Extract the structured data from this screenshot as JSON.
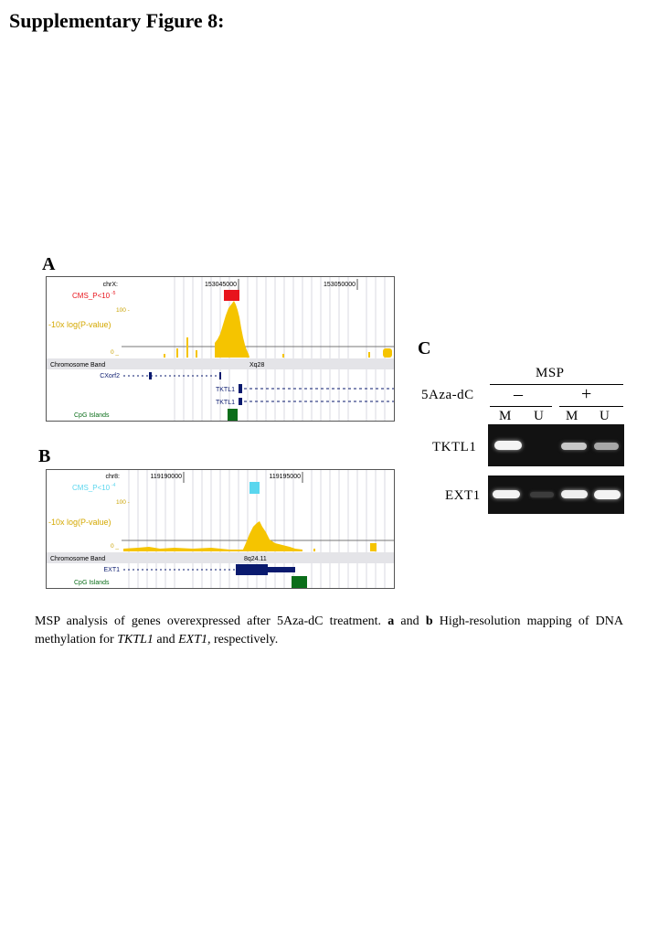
{
  "title": "Supplementary Figure 8:",
  "panelA": {
    "letter": "A",
    "chrom_label": "chrX:",
    "tick1": "153045000",
    "tick2": "153050000",
    "cms_label": "CMS_P<10",
    "cms_exp": "-5",
    "y100": "100 -",
    "y0": "0 _",
    "logp_label": "-10x log(P-value)",
    "band_label": "Chromosome Band",
    "band_value": "Xq28",
    "gene1": "CXorf2",
    "gene2": "TKTL1",
    "gene3": "TKTL1",
    "cpg_label": "CpG Islands",
    "colors": {
      "cms": "#e8141c",
      "signal": "#f5c400",
      "gene": "#0a1a6e",
      "cpg": "#0b6e1a"
    }
  },
  "panelB": {
    "letter": "B",
    "chrom_label": "chr8:",
    "tick1": "119190000",
    "tick2": "119195000",
    "cms_label": "CMS_P<10",
    "cms_exp": "-4",
    "y100": "100 -",
    "y0": "0 _",
    "logp_label": "-10x log(P-value)",
    "band_label": "Chromosome Band",
    "band_value": "8q24.11",
    "gene1": "EXT1",
    "cpg_label": "CpG Islands",
    "colors": {
      "cms": "#5ad6ee",
      "signal": "#f5c400",
      "gene": "#0a1a6e",
      "cpg": "#0b6e1a"
    }
  },
  "panelC": {
    "letter": "C",
    "msp": "MSP",
    "treatment": "5Aza-dC",
    "minus": "–",
    "plus": "+",
    "lanes": [
      "M",
      "U",
      "M",
      "U"
    ],
    "genes": [
      "TKTL1",
      "EXT1"
    ]
  },
  "caption": {
    "part1": "MSP analysis of genes overexpressed after 5Aza-dC treatment. ",
    "a": "a",
    "and": " and ",
    "b": "b",
    "part2": " High-resolution mapping of DNA methylation for ",
    "gene1": "TKTL1",
    "and2": " and ",
    "gene2": "EXT1,",
    "part3": " respectively."
  }
}
